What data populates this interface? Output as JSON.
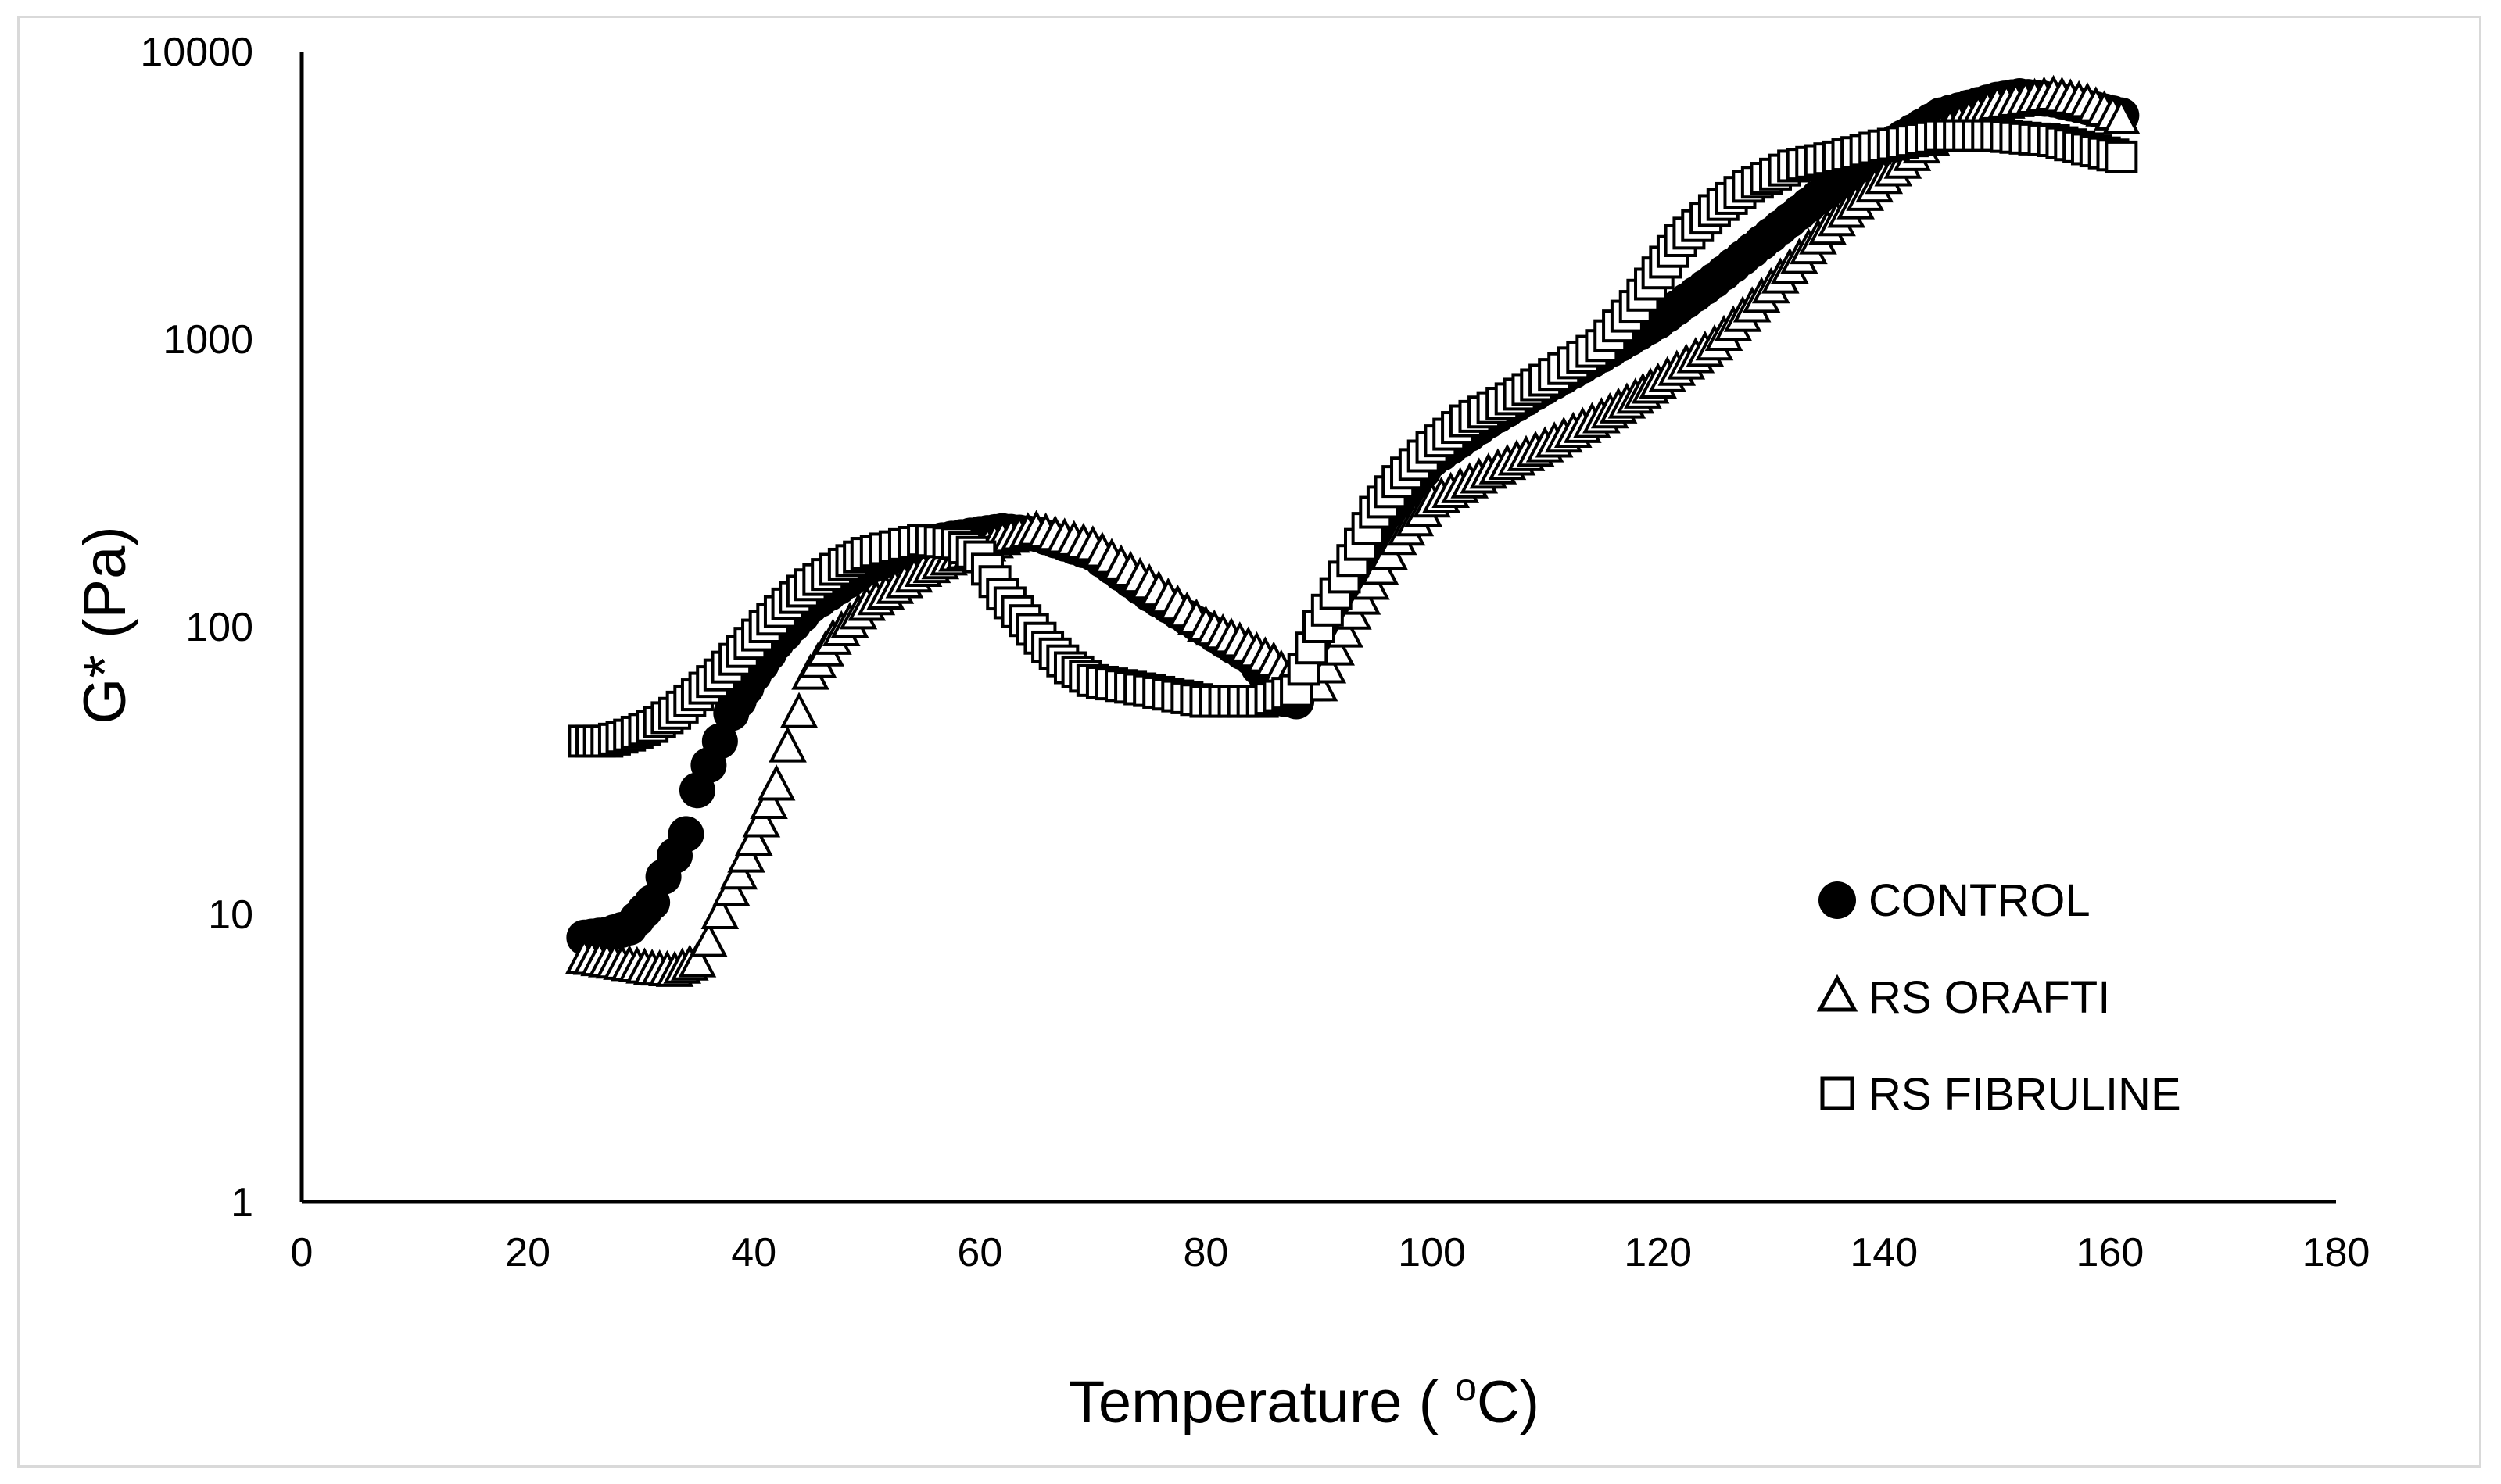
{
  "chart_data": {
    "type": "scatter",
    "title": "",
    "xlabel": {
      "main": "Temperature ( ",
      "sup": "o",
      "unit": "C)"
    },
    "ylabel": "G* (Pa)",
    "xlim": [
      0,
      180
    ],
    "ylim": [
      1,
      10000
    ],
    "yscale": "log",
    "xticks": [
      "0",
      "20",
      "40",
      "60",
      "80",
      "100",
      "120",
      "140",
      "160",
      "180"
    ],
    "yticks": [
      "1",
      "10",
      "100",
      "1000",
      "10000"
    ],
    "grid": false,
    "legend_position": "lower-right",
    "series": [
      {
        "name": "CONTROL",
        "marker": "circle-filled",
        "color": "#000000",
        "points": [
          [
            25,
            8.3
          ],
          [
            27,
            8.5
          ],
          [
            29,
            9
          ],
          [
            31,
            11
          ],
          [
            32,
            13.5
          ],
          [
            33,
            16
          ],
          [
            34,
            19
          ],
          [
            35,
            27
          ],
          [
            36,
            33
          ],
          [
            37,
            40
          ],
          [
            38,
            50
          ],
          [
            40,
            68
          ],
          [
            42,
            88
          ],
          [
            45,
            118
          ],
          [
            50,
            160
          ],
          [
            55,
            195
          ],
          [
            60,
            210
          ],
          [
            62,
            215
          ],
          [
            65,
            210
          ],
          [
            70,
            180
          ],
          [
            75,
            130
          ],
          [
            80,
            98
          ],
          [
            84,
            78
          ],
          [
            86,
            62
          ],
          [
            87,
            56
          ],
          [
            88,
            55
          ],
          [
            90,
            80
          ],
          [
            93,
            150
          ],
          [
            97,
            270
          ],
          [
            100,
            380
          ],
          [
            105,
            520
          ],
          [
            110,
            680
          ],
          [
            115,
            880
          ],
          [
            120,
            1150
          ],
          [
            125,
            1600
          ],
          [
            130,
            2300
          ],
          [
            135,
            3300
          ],
          [
            140,
            4600
          ],
          [
            145,
            6000
          ],
          [
            150,
            6800
          ],
          [
            152,
            7000
          ],
          [
            155,
            6800
          ],
          [
            158,
            6400
          ],
          [
            161,
            6000
          ]
        ]
      },
      {
        "name": "RS ORAFTI",
        "marker": "triangle-open",
        "color": "#000000",
        "points": [
          [
            25,
            7
          ],
          [
            27,
            6.8
          ],
          [
            29,
            6.6
          ],
          [
            31,
            6.4
          ],
          [
            33,
            6.3
          ],
          [
            35,
            6.8
          ],
          [
            36,
            8
          ],
          [
            37,
            10
          ],
          [
            38,
            12
          ],
          [
            40,
            18
          ],
          [
            42,
            28
          ],
          [
            43,
            38
          ],
          [
            44,
            50
          ],
          [
            45,
            68
          ],
          [
            47,
            90
          ],
          [
            50,
            118
          ],
          [
            55,
            155
          ],
          [
            58,
            175
          ],
          [
            60,
            185
          ],
          [
            62,
            200
          ],
          [
            65,
            215
          ],
          [
            70,
            190
          ],
          [
            75,
            140
          ],
          [
            80,
            100
          ],
          [
            83,
            88
          ],
          [
            86,
            75
          ],
          [
            88,
            62
          ],
          [
            90,
            62
          ],
          [
            93,
            110
          ],
          [
            97,
            200
          ],
          [
            100,
            270
          ],
          [
            105,
            340
          ],
          [
            110,
            420
          ],
          [
            115,
            530
          ],
          [
            118,
            620
          ],
          [
            120,
            700
          ],
          [
            125,
            950
          ],
          [
            130,
            1500
          ],
          [
            135,
            2400
          ],
          [
            140,
            3600
          ],
          [
            145,
            5200
          ],
          [
            150,
            6500
          ],
          [
            155,
            7000
          ],
          [
            158,
            6600
          ],
          [
            161,
            5800
          ]
        ]
      },
      {
        "name": "RS FIBRULINE",
        "marker": "square-open",
        "color": "#000000",
        "points": [
          [
            25,
            40
          ],
          [
            27,
            40
          ],
          [
            29,
            42
          ],
          [
            31,
            45
          ],
          [
            33,
            50
          ],
          [
            35,
            58
          ],
          [
            37,
            68
          ],
          [
            39,
            82
          ],
          [
            41,
            100
          ],
          [
            43,
            120
          ],
          [
            45,
            140
          ],
          [
            48,
            165
          ],
          [
            50,
            180
          ],
          [
            55,
            200
          ],
          [
            58,
            195
          ],
          [
            60,
            175
          ],
          [
            62,
            130
          ],
          [
            64,
            105
          ],
          [
            66,
            85
          ],
          [
            68,
            72
          ],
          [
            70,
            65
          ],
          [
            75,
            60
          ],
          [
            80,
            55
          ],
          [
            85,
            55
          ],
          [
            88,
            60
          ],
          [
            90,
            100
          ],
          [
            93,
            170
          ],
          [
            95,
            250
          ],
          [
            97,
            320
          ],
          [
            100,
            420
          ],
          [
            103,
            520
          ],
          [
            107,
            620
          ],
          [
            110,
            720
          ],
          [
            115,
            950
          ],
          [
            118,
            1300
          ],
          [
            120,
            1700
          ],
          [
            122,
            2200
          ],
          [
            125,
            2800
          ],
          [
            128,
            3400
          ],
          [
            132,
            4000
          ],
          [
            136,
            4300
          ],
          [
            140,
            4700
          ],
          [
            145,
            5100
          ],
          [
            150,
            5100
          ],
          [
            155,
            4900
          ],
          [
            161,
            4300
          ]
        ]
      }
    ]
  }
}
